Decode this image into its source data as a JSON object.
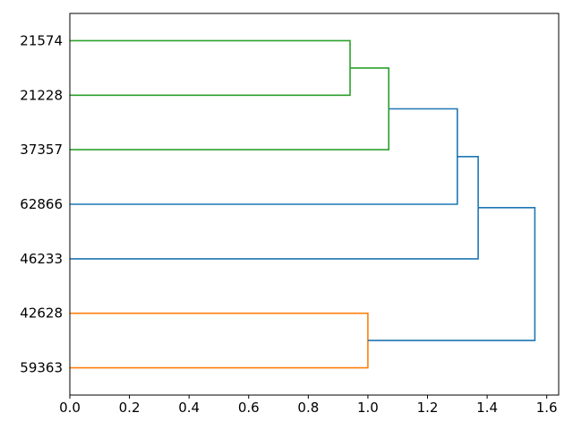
{
  "figure": {
    "background": "#ffffff",
    "axis_color": "#000000",
    "text_color": "#000000"
  },
  "chart_data": {
    "type": "dendrogram",
    "orientation": "right",
    "title": "",
    "xlabel": "",
    "ylabel": "",
    "leaves": [
      "21574",
      "21228",
      "37357",
      "62866",
      "46233",
      "42628",
      "59363"
    ],
    "x_ticks": [
      0.0,
      0.2,
      0.4,
      0.6,
      0.8,
      1.0,
      1.2,
      1.4,
      1.6
    ],
    "x_tick_labels": [
      "0.0",
      "0.2",
      "0.4",
      "0.6",
      "0.8",
      "1.0",
      "1.2",
      "1.4",
      "1.6"
    ],
    "xlim": [
      0,
      1.64
    ],
    "ylim": [
      0,
      70
    ],
    "grid": false,
    "legend": null,
    "colors": {
      "green_cluster": "#2ca02c",
      "orange_cluster": "#ff7f0e",
      "above_threshold": "#1f77b4"
    },
    "merges": [
      {
        "members": [
          "21574",
          "21228"
        ],
        "height": 0.94,
        "color": "#2ca02c",
        "c1_pos": 0,
        "c1_h": 0,
        "c2_pos": 1,
        "c2_h": 0
      },
      {
        "members": [
          "21574+21228",
          "37357"
        ],
        "height": 1.07,
        "color": "#2ca02c",
        "c1_pos": 0.5,
        "c1_h": 0.94,
        "c2_pos": 2,
        "c2_h": 0
      },
      {
        "members": [
          "green-cluster",
          "62866"
        ],
        "height": 1.3,
        "color": "#1f77b4",
        "c1_pos": 1.25,
        "c1_h": 1.07,
        "c2_pos": 3,
        "c2_h": 0
      },
      {
        "members": [
          "green-cluster+62866",
          "46233"
        ],
        "height": 1.37,
        "color": "#1f77b4",
        "c1_pos": 2.125,
        "c1_h": 1.3,
        "c2_pos": 4,
        "c2_h": 0
      },
      {
        "members": [
          "42628",
          "59363"
        ],
        "height": 1.0,
        "color": "#ff7f0e",
        "c1_pos": 5,
        "c1_h": 0,
        "c2_pos": 6,
        "c2_h": 0
      },
      {
        "members": [
          "upper-cluster",
          "orange-cluster"
        ],
        "height": 1.56,
        "color": "#1f77b4",
        "c1_pos": 3.0625,
        "c1_h": 1.37,
        "c2_pos": 5.5,
        "c2_h": 1.0
      }
    ]
  }
}
